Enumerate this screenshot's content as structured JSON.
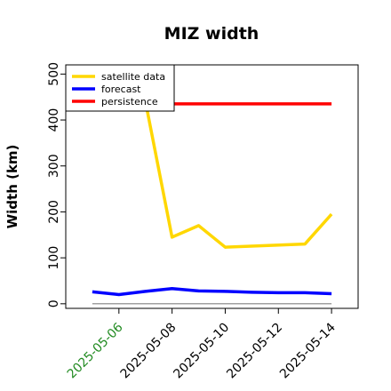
{
  "chart_data": {
    "type": "line",
    "title": "MIZ width",
    "xlabel": "",
    "ylabel": "Width (km)",
    "x": [
      "2025-05-05",
      "2025-05-06",
      "2025-05-07",
      "2025-05-08",
      "2025-05-09",
      "2025-05-10",
      "2025-05-11",
      "2025-05-12",
      "2025-05-13",
      "2025-05-14"
    ],
    "x_ticks": [
      "2025-05-06",
      "2025-05-08",
      "2025-05-10",
      "2025-05-12",
      "2025-05-14"
    ],
    "x_tick_colors": [
      "#228b22",
      "#000000",
      "#000000",
      "#000000",
      "#000000"
    ],
    "xlim": [
      "2025-05-04",
      "2025-05-15"
    ],
    "ylim": [
      -10,
      520
    ],
    "y_ticks": [
      0,
      100,
      200,
      300,
      400,
      500
    ],
    "grid": false,
    "legend_position": "top-left",
    "zero_line": 0,
    "series": [
      {
        "name": "satellite data",
        "color": "#ffd700",
        "x": [
          "2025-05-07",
          "2025-05-08",
          "2025-05-09",
          "2025-05-10",
          "2025-05-13",
          "2025-05-14"
        ],
        "values": [
          440,
          145,
          170,
          123,
          130,
          195
        ]
      },
      {
        "name": "forecast",
        "color": "#0000ff",
        "x": [
          "2025-05-05",
          "2025-05-06",
          "2025-05-07",
          "2025-05-08",
          "2025-05-09",
          "2025-05-10",
          "2025-05-11",
          "2025-05-12",
          "2025-05-13",
          "2025-05-14"
        ],
        "values": [
          26,
          20,
          27,
          33,
          28,
          27,
          25,
          24,
          24,
          22
        ]
      },
      {
        "name": "persistence",
        "color": "#ff0000",
        "x": [
          "2025-05-07",
          "2025-05-14"
        ],
        "values": [
          435,
          435
        ]
      }
    ]
  }
}
